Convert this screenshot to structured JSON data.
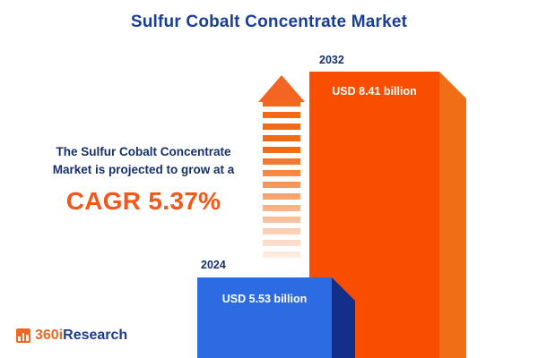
{
  "title": "Sulfur Cobalt Concentrate Market",
  "description": {
    "line1": "The Sulfur Cobalt Concentrate",
    "line2": "Market is projected to grow at a",
    "cagr": "CAGR 5.37%"
  },
  "chart_data": {
    "type": "bar",
    "title": "Sulfur Cobalt Concentrate Market",
    "categories": [
      "2024",
      "2032"
    ],
    "values": [
      5.53,
      8.41
    ],
    "value_labels": [
      "USD 5.53 billion",
      "USD 8.41 billion"
    ],
    "unit": "USD billion",
    "cagr_percent": 5.37,
    "legend": "none",
    "grid": false,
    "colors": {
      "bar_2024_front": "#2d6be3",
      "bar_2024_side": "#122f8a",
      "bar_2032_front": "#f94e00",
      "bar_2032_side": "#ef6e16",
      "arrow": "#f26522",
      "navy_text": "#17306b",
      "title_navy": "#1a3e96",
      "cagr_orange": "#f2581c"
    }
  },
  "logo": {
    "prefix": "360i",
    "suffix": "Research"
  }
}
